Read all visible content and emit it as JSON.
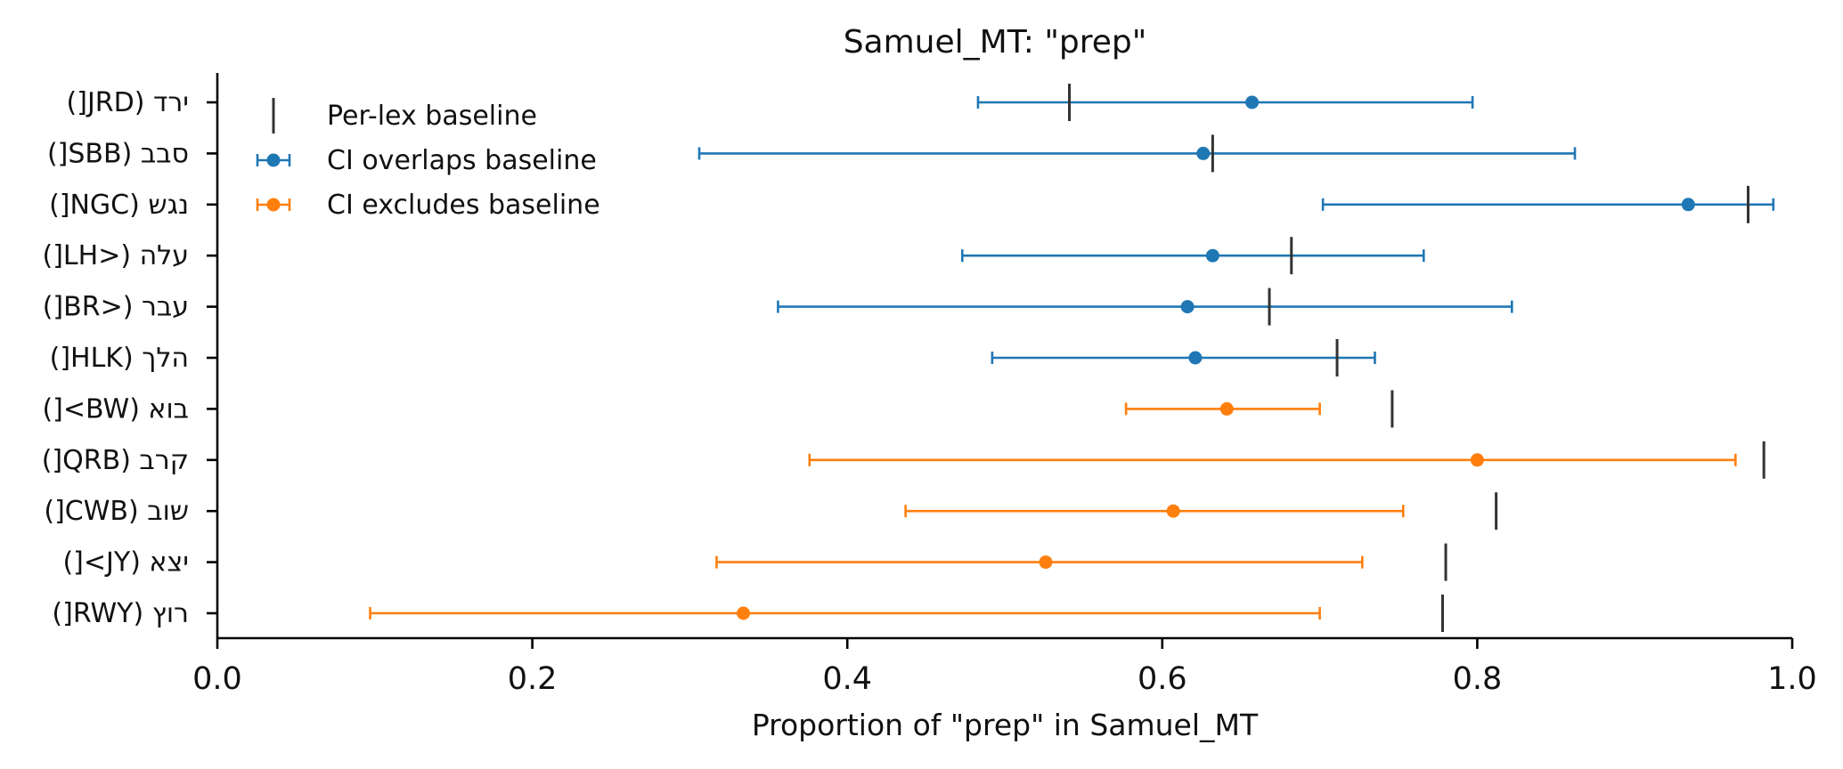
{
  "chart_data": {
    "type": "scatter",
    "title": "Samuel_MT: \"prep\"",
    "xlabel": "Proportion of \"prep\" in Samuel_MT",
    "xlim": [
      0.0,
      1.0
    ],
    "xticks": [
      "0.0",
      "0.2",
      "0.4",
      "0.6",
      "0.8",
      "1.0"
    ],
    "xtick_values": [
      0.0,
      0.2,
      0.4,
      0.6,
      0.8,
      1.0
    ],
    "legend": {
      "placement": "top-left",
      "entries": [
        "Per-lex baseline",
        "CI overlaps baseline",
        "CI excludes baseline"
      ]
    },
    "colors": {
      "overlaps": "#1f77b4",
      "excludes": "#ff7f0e",
      "baseline": "#333333"
    },
    "rows": [
      {
        "label": "ירד (JRD[)",
        "estimate": 0.657,
        "ci_low": 0.483,
        "ci_high": 0.797,
        "baseline": 0.541,
        "group": "overlaps"
      },
      {
        "label": "סבב (SBB[)",
        "estimate": 0.626,
        "ci_low": 0.306,
        "ci_high": 0.862,
        "baseline": 0.632,
        "group": "overlaps"
      },
      {
        "label": "נגש (NGC[)",
        "estimate": 0.934,
        "ci_low": 0.702,
        "ci_high": 0.988,
        "baseline": 0.972,
        "group": "overlaps"
      },
      {
        "label": "עלה (<LH[)",
        "estimate": 0.632,
        "ci_low": 0.473,
        "ci_high": 0.766,
        "baseline": 0.682,
        "group": "overlaps"
      },
      {
        "label": "עבר (<BR[)",
        "estimate": 0.616,
        "ci_low": 0.356,
        "ci_high": 0.822,
        "baseline": 0.668,
        "group": "overlaps"
      },
      {
        "label": "הלך (HLK[)",
        "estimate": 0.621,
        "ci_low": 0.492,
        "ci_high": 0.735,
        "baseline": 0.711,
        "group": "overlaps"
      },
      {
        "label": "בוא (BW>[)",
        "estimate": 0.641,
        "ci_low": 0.577,
        "ci_high": 0.7,
        "baseline": 0.746,
        "group": "excludes"
      },
      {
        "label": "קרב (QRB[)",
        "estimate": 0.8,
        "ci_low": 0.376,
        "ci_high": 0.964,
        "baseline": 0.982,
        "group": "excludes"
      },
      {
        "label": "שוב (CWB[)",
        "estimate": 0.607,
        "ci_low": 0.437,
        "ci_high": 0.753,
        "baseline": 0.812,
        "group": "excludes"
      },
      {
        "label": "יצא (JY>[)",
        "estimate": 0.526,
        "ci_low": 0.317,
        "ci_high": 0.727,
        "baseline": 0.78,
        "group": "excludes"
      },
      {
        "label": "רוץ (RWY[)",
        "estimate": 0.334,
        "ci_low": 0.097,
        "ci_high": 0.7,
        "baseline": 0.778,
        "group": "excludes"
      }
    ]
  }
}
